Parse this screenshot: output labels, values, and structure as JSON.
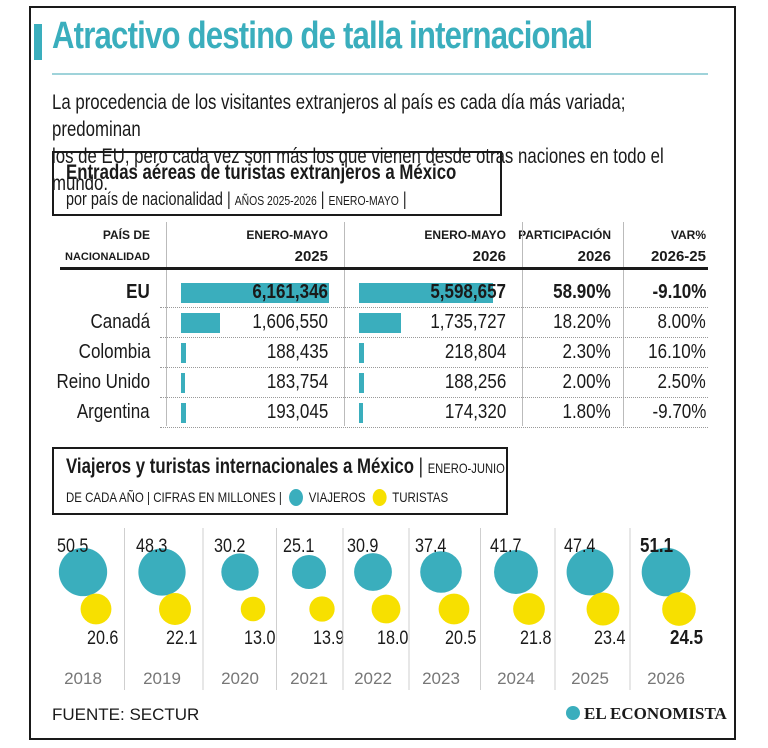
{
  "header": {
    "title": "Atractivo destino de talla internacional",
    "intro_line1": "La procedencia de los visitantes extranjeros al país es cada día más variada; predominan",
    "intro_line2": "los de EU, pero cada vez son más los que vienen desde otras naciones en todo el mundo."
  },
  "table_block": {
    "title": "Entradas aéreas de turistas extranjeros a México",
    "sub_main": "por país de nacionalidad",
    "sub_years": "años 2025-2026",
    "sub_period": "enero-mayo",
    "col_country_1": "PAÍS DE",
    "col_country_2": "NACIONALIDAD",
    "col_2025_1": "ENERO-MAYO",
    "col_2025_2": "2025",
    "col_2026_1": "ENERO-MAYO",
    "col_2026_2": "2026",
    "col_share_1": "PARTICIPACIÓN",
    "col_share_2": "2026",
    "col_var_1": "VAR%",
    "col_var_2": "2026-25"
  },
  "bubble_block": {
    "title": "Viajeros y turistas internacionales a México",
    "period": "enero-junio",
    "sub": "de cada año",
    "units": "cifras en millones",
    "legend_viajeros": "viajeros",
    "legend_turistas": "turistas"
  },
  "colors": {
    "teal": "#3aaebd",
    "yellow": "#f7e000",
    "text": "#1a1a1a"
  },
  "chart_data": [
    {
      "type": "table",
      "title": "Entradas aéreas de turistas extranjeros a México",
      "columns": [
        "País de nacionalidad",
        "Enero-mayo 2025",
        "Enero-mayo 2026",
        "Participación 2026",
        "Var% 2026-25"
      ],
      "rows": [
        {
          "country": "EU",
          "v2025": 6161346,
          "v2026": 5598657,
          "v2025_label": "6,161,346",
          "v2026_label": "5,598,657",
          "share": "58.90%",
          "var": "-9.10%",
          "bold": true
        },
        {
          "country": "Canadá",
          "v2025": 1606550,
          "v2026": 1735727,
          "v2025_label": "1,606,550",
          "v2026_label": "1,735,727",
          "share": "18.20%",
          "var": "8.00%",
          "bold": false
        },
        {
          "country": "Colombia",
          "v2025": 188435,
          "v2026": 218804,
          "v2025_label": "188,435",
          "v2026_label": "218,804",
          "share": "2.30%",
          "var": "16.10%",
          "bold": false
        },
        {
          "country": "Reino Unido",
          "v2025": 183754,
          "v2026": 188256,
          "v2025_label": "183,754",
          "v2026_label": "188,256",
          "share": "2.00%",
          "var": "2.50%",
          "bold": false
        },
        {
          "country": "Argentina",
          "v2025": 193045,
          "v2026": 174320,
          "v2025_label": "193,045",
          "v2026_label": "174,320",
          "share": "1.80%",
          "var": "-9.70%",
          "bold": false
        }
      ]
    },
    {
      "type": "scatter",
      "title": "Viajeros y turistas internacionales a México",
      "categories": [
        "2018",
        "2019",
        "2020",
        "2021",
        "2022",
        "2023",
        "2024",
        "2025",
        "2026"
      ],
      "series": [
        {
          "name": "viajeros",
          "values": [
            50.5,
            48.3,
            30.2,
            25.1,
            30.9,
            37.4,
            41.7,
            47.4,
            51.1
          ],
          "labels": [
            "50.5",
            "48.3",
            "30.2",
            "25.1",
            "30.9",
            "37.4",
            "41.7",
            "47.4",
            "51.1"
          ],
          "color": "#3aaebd"
        },
        {
          "name": "turistas",
          "values": [
            20.6,
            22.1,
            13.0,
            13.9,
            18.0,
            20.5,
            21.8,
            23.4,
            24.5
          ],
          "labels": [
            "20.6",
            "22.1",
            "13.0",
            "13.9",
            "18.0",
            "20.5",
            "21.8",
            "23.4",
            "24.5"
          ],
          "color": "#f7e000"
        }
      ]
    }
  ],
  "footer": {
    "source": "FUENTE: SECTUR",
    "brand": "EL ECONOMISTA"
  }
}
